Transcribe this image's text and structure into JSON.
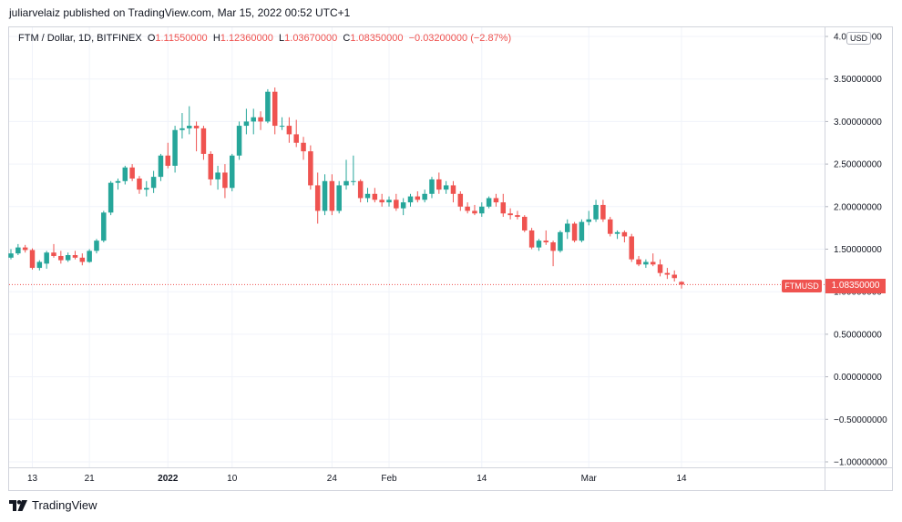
{
  "header": {
    "published": "juliarvelaiz published on TradingView.com, Mar 15, 2022 00:52 UTC+1"
  },
  "legend": {
    "symbol": "FTM / Dollar, 1D, BITFINEX",
    "o_label": "O",
    "o_value": "1.11550000",
    "h_label": "H",
    "h_value": "1.12360000",
    "l_label": "L",
    "l_value": "1.03670000",
    "c_label": "C",
    "c_value": "1.08350000",
    "change": "−0.03200000 (−2.87%)"
  },
  "currency_tag": "USD",
  "last_price": {
    "symbol": "FTMUSD",
    "value": "1.08350000"
  },
  "brand": {
    "name": "TradingView"
  },
  "colors": {
    "up": "#26a69a",
    "down": "#ef5350",
    "grid": "#f0f3fa",
    "axis_text": "#131722"
  },
  "chart_data": {
    "type": "candlestick",
    "ylim": [
      -1.0,
      4.0
    ],
    "y_ticks": [
      -1.0,
      -0.5,
      0.0,
      0.5,
      1.0,
      1.5,
      2.0,
      2.5,
      3.0,
      3.5,
      4.0
    ],
    "y_tick_labels": [
      "−1.00000000",
      "−0.50000000",
      "0.00000000",
      "0.50000000",
      "1.00000000",
      "1.50000000",
      "2.00000000",
      "2.50000000",
      "3.00000000",
      "3.50000000",
      "4.00000000"
    ],
    "x_ticks": [
      {
        "label": "13",
        "date": "2021-12-13",
        "bold": false
      },
      {
        "label": "21",
        "date": "2021-12-21",
        "bold": false
      },
      {
        "label": "2022",
        "date": "2022-01-01",
        "bold": true
      },
      {
        "label": "10",
        "date": "2022-01-10",
        "bold": false
      },
      {
        "label": "24",
        "date": "2022-01-24",
        "bold": false
      },
      {
        "label": "Feb",
        "date": "2022-02-01",
        "bold": false
      },
      {
        "label": "14",
        "date": "2022-02-14",
        "bold": false
      },
      {
        "label": "Mar",
        "date": "2022-03-01",
        "bold": false
      },
      {
        "label": "14",
        "date": "2022-03-14",
        "bold": false
      }
    ],
    "last_close": 1.0835,
    "candles": [
      {
        "date": "2021-12-10",
        "o": 1.4,
        "h": 1.5,
        "l": 1.38,
        "c": 1.45
      },
      {
        "date": "2021-12-11",
        "o": 1.45,
        "h": 1.56,
        "l": 1.43,
        "c": 1.52
      },
      {
        "date": "2021-12-12",
        "o": 1.52,
        "h": 1.55,
        "l": 1.46,
        "c": 1.49
      },
      {
        "date": "2021-12-13",
        "o": 1.49,
        "h": 1.51,
        "l": 1.26,
        "c": 1.28
      },
      {
        "date": "2021-12-14",
        "o": 1.28,
        "h": 1.37,
        "l": 1.25,
        "c": 1.35
      },
      {
        "date": "2021-12-15",
        "o": 1.33,
        "h": 1.48,
        "l": 1.27,
        "c": 1.46
      },
      {
        "date": "2021-12-16",
        "o": 1.46,
        "h": 1.56,
        "l": 1.4,
        "c": 1.42
      },
      {
        "date": "2021-12-17",
        "o": 1.42,
        "h": 1.48,
        "l": 1.33,
        "c": 1.37
      },
      {
        "date": "2021-12-18",
        "o": 1.37,
        "h": 1.46,
        "l": 1.35,
        "c": 1.43
      },
      {
        "date": "2021-12-19",
        "o": 1.43,
        "h": 1.48,
        "l": 1.38,
        "c": 1.4
      },
      {
        "date": "2021-12-20",
        "o": 1.4,
        "h": 1.45,
        "l": 1.31,
        "c": 1.35
      },
      {
        "date": "2021-12-21",
        "o": 1.35,
        "h": 1.5,
        "l": 1.34,
        "c": 1.48
      },
      {
        "date": "2021-12-22",
        "o": 1.48,
        "h": 1.62,
        "l": 1.45,
        "c": 1.6
      },
      {
        "date": "2021-12-23",
        "o": 1.6,
        "h": 1.95,
        "l": 1.58,
        "c": 1.93
      },
      {
        "date": "2021-12-24",
        "o": 1.93,
        "h": 2.3,
        "l": 1.9,
        "c": 2.28
      },
      {
        "date": "2021-12-25",
        "o": 2.28,
        "h": 2.33,
        "l": 2.2,
        "c": 2.3
      },
      {
        "date": "2021-12-26",
        "o": 2.3,
        "h": 2.48,
        "l": 2.26,
        "c": 2.46
      },
      {
        "date": "2021-12-27",
        "o": 2.46,
        "h": 2.5,
        "l": 2.3,
        "c": 2.33
      },
      {
        "date": "2021-12-28",
        "o": 2.33,
        "h": 2.36,
        "l": 2.15,
        "c": 2.2
      },
      {
        "date": "2021-12-29",
        "o": 2.2,
        "h": 2.3,
        "l": 2.12,
        "c": 2.22
      },
      {
        "date": "2021-12-30",
        "o": 2.22,
        "h": 2.42,
        "l": 2.16,
        "c": 2.35
      },
      {
        "date": "2021-12-31",
        "o": 2.35,
        "h": 2.62,
        "l": 2.3,
        "c": 2.6
      },
      {
        "date": "2022-01-01",
        "o": 2.6,
        "h": 2.75,
        "l": 2.45,
        "c": 2.48
      },
      {
        "date": "2022-01-02",
        "o": 2.48,
        "h": 2.95,
        "l": 2.4,
        "c": 2.9
      },
      {
        "date": "2022-01-03",
        "o": 2.9,
        "h": 3.1,
        "l": 2.8,
        "c": 2.92
      },
      {
        "date": "2022-01-04",
        "o": 2.92,
        "h": 3.18,
        "l": 2.85,
        "c": 2.95
      },
      {
        "date": "2022-01-05",
        "o": 2.95,
        "h": 3.0,
        "l": 2.65,
        "c": 2.92
      },
      {
        "date": "2022-01-06",
        "o": 2.92,
        "h": 2.95,
        "l": 2.55,
        "c": 2.62
      },
      {
        "date": "2022-01-07",
        "o": 2.62,
        "h": 2.65,
        "l": 2.25,
        "c": 2.32
      },
      {
        "date": "2022-01-08",
        "o": 2.32,
        "h": 2.48,
        "l": 2.2,
        "c": 2.4
      },
      {
        "date": "2022-01-09",
        "o": 2.4,
        "h": 2.5,
        "l": 2.1,
        "c": 2.22
      },
      {
        "date": "2022-01-10",
        "o": 2.22,
        "h": 2.62,
        "l": 2.18,
        "c": 2.6
      },
      {
        "date": "2022-01-11",
        "o": 2.6,
        "h": 3.0,
        "l": 2.55,
        "c": 2.95
      },
      {
        "date": "2022-01-12",
        "o": 2.95,
        "h": 3.15,
        "l": 2.85,
        "c": 3.0
      },
      {
        "date": "2022-01-13",
        "o": 3.0,
        "h": 3.15,
        "l": 2.85,
        "c": 3.05
      },
      {
        "date": "2022-01-14",
        "o": 3.05,
        "h": 3.12,
        "l": 2.9,
        "c": 3.0
      },
      {
        "date": "2022-01-15",
        "o": 3.0,
        "h": 3.38,
        "l": 2.98,
        "c": 3.35
      },
      {
        "date": "2022-01-16",
        "o": 3.35,
        "h": 3.4,
        "l": 2.85,
        "c": 2.95
      },
      {
        "date": "2022-01-17",
        "o": 2.95,
        "h": 3.05,
        "l": 2.9,
        "c": 2.95
      },
      {
        "date": "2022-01-18",
        "o": 2.95,
        "h": 3.05,
        "l": 2.75,
        "c": 2.85
      },
      {
        "date": "2022-01-19",
        "o": 2.85,
        "h": 3.02,
        "l": 2.7,
        "c": 2.75
      },
      {
        "date": "2022-01-20",
        "o": 2.75,
        "h": 2.82,
        "l": 2.55,
        "c": 2.65
      },
      {
        "date": "2022-01-21",
        "o": 2.65,
        "h": 2.72,
        "l": 2.2,
        "c": 2.25
      },
      {
        "date": "2022-01-22",
        "o": 2.25,
        "h": 2.4,
        "l": 1.8,
        "c": 1.95
      },
      {
        "date": "2022-01-23",
        "o": 1.95,
        "h": 2.38,
        "l": 1.9,
        "c": 2.3
      },
      {
        "date": "2022-01-24",
        "o": 2.3,
        "h": 2.38,
        "l": 1.9,
        "c": 1.95
      },
      {
        "date": "2022-01-25",
        "o": 1.95,
        "h": 2.3,
        "l": 1.92,
        "c": 2.25
      },
      {
        "date": "2022-01-26",
        "o": 2.25,
        "h": 2.55,
        "l": 2.2,
        "c": 2.3
      },
      {
        "date": "2022-01-27",
        "o": 2.3,
        "h": 2.6,
        "l": 2.25,
        "c": 2.3
      },
      {
        "date": "2022-01-28",
        "o": 2.3,
        "h": 2.32,
        "l": 2.05,
        "c": 2.1
      },
      {
        "date": "2022-01-29",
        "o": 2.1,
        "h": 2.22,
        "l": 2.05,
        "c": 2.15
      },
      {
        "date": "2022-01-30",
        "o": 2.15,
        "h": 2.22,
        "l": 2.05,
        "c": 2.08
      },
      {
        "date": "2022-01-31",
        "o": 2.08,
        "h": 2.15,
        "l": 2.0,
        "c": 2.05
      },
      {
        "date": "2022-02-01",
        "o": 2.05,
        "h": 2.12,
        "l": 2.0,
        "c": 2.08
      },
      {
        "date": "2022-02-02",
        "o": 2.08,
        "h": 2.15,
        "l": 1.95,
        "c": 1.98
      },
      {
        "date": "2022-02-03",
        "o": 1.98,
        "h": 2.1,
        "l": 1.9,
        "c": 2.05
      },
      {
        "date": "2022-02-04",
        "o": 2.05,
        "h": 2.15,
        "l": 2.0,
        "c": 2.12
      },
      {
        "date": "2022-02-05",
        "o": 2.12,
        "h": 2.18,
        "l": 2.05,
        "c": 2.08
      },
      {
        "date": "2022-02-06",
        "o": 2.08,
        "h": 2.2,
        "l": 2.05,
        "c": 2.15
      },
      {
        "date": "2022-02-07",
        "o": 2.15,
        "h": 2.35,
        "l": 2.1,
        "c": 2.32
      },
      {
        "date": "2022-02-08",
        "o": 2.32,
        "h": 2.4,
        "l": 2.15,
        "c": 2.2
      },
      {
        "date": "2022-02-09",
        "o": 2.2,
        "h": 2.3,
        "l": 2.15,
        "c": 2.25
      },
      {
        "date": "2022-02-10",
        "o": 2.25,
        "h": 2.3,
        "l": 2.05,
        "c": 2.15
      },
      {
        "date": "2022-02-11",
        "o": 2.15,
        "h": 2.18,
        "l": 1.95,
        "c": 2.0
      },
      {
        "date": "2022-02-12",
        "o": 2.0,
        "h": 2.05,
        "l": 1.92,
        "c": 1.95
      },
      {
        "date": "2022-02-13",
        "o": 1.95,
        "h": 2.02,
        "l": 1.9,
        "c": 1.92
      },
      {
        "date": "2022-02-14",
        "o": 1.92,
        "h": 2.05,
        "l": 1.88,
        "c": 2.0
      },
      {
        "date": "2022-02-15",
        "o": 2.0,
        "h": 2.12,
        "l": 1.98,
        "c": 2.1
      },
      {
        "date": "2022-02-16",
        "o": 2.1,
        "h": 2.15,
        "l": 2.0,
        "c": 2.05
      },
      {
        "date": "2022-02-17",
        "o": 2.05,
        "h": 2.15,
        "l": 1.88,
        "c": 1.92
      },
      {
        "date": "2022-02-18",
        "o": 1.92,
        "h": 1.98,
        "l": 1.85,
        "c": 1.9
      },
      {
        "date": "2022-02-19",
        "o": 1.9,
        "h": 1.95,
        "l": 1.85,
        "c": 1.88
      },
      {
        "date": "2022-02-20",
        "o": 1.88,
        "h": 1.9,
        "l": 1.7,
        "c": 1.72
      },
      {
        "date": "2022-02-21",
        "o": 1.72,
        "h": 1.75,
        "l": 1.5,
        "c": 1.52
      },
      {
        "date": "2022-02-22",
        "o": 1.52,
        "h": 1.62,
        "l": 1.48,
        "c": 1.6
      },
      {
        "date": "2022-02-23",
        "o": 1.6,
        "h": 1.72,
        "l": 1.55,
        "c": 1.58
      },
      {
        "date": "2022-02-24",
        "o": 1.58,
        "h": 1.6,
        "l": 1.3,
        "c": 1.48
      },
      {
        "date": "2022-02-25",
        "o": 1.48,
        "h": 1.72,
        "l": 1.46,
        "c": 1.7
      },
      {
        "date": "2022-02-26",
        "o": 1.7,
        "h": 1.85,
        "l": 1.62,
        "c": 1.8
      },
      {
        "date": "2022-02-27",
        "o": 1.8,
        "h": 1.82,
        "l": 1.58,
        "c": 1.6
      },
      {
        "date": "2022-02-28",
        "o": 1.6,
        "h": 1.85,
        "l": 1.58,
        "c": 1.82
      },
      {
        "date": "2022-03-01",
        "o": 1.82,
        "h": 1.95,
        "l": 1.78,
        "c": 1.85
      },
      {
        "date": "2022-03-02",
        "o": 1.85,
        "h": 2.08,
        "l": 1.82,
        "c": 2.02
      },
      {
        "date": "2022-03-03",
        "o": 2.02,
        "h": 2.08,
        "l": 1.82,
        "c": 1.85
      },
      {
        "date": "2022-03-04",
        "o": 1.85,
        "h": 1.88,
        "l": 1.65,
        "c": 1.68
      },
      {
        "date": "2022-03-05",
        "o": 1.68,
        "h": 1.72,
        "l": 1.62,
        "c": 1.7
      },
      {
        "date": "2022-03-06",
        "o": 1.7,
        "h": 1.72,
        "l": 1.58,
        "c": 1.65
      },
      {
        "date": "2022-03-07",
        "o": 1.65,
        "h": 1.68,
        "l": 1.35,
        "c": 1.38
      },
      {
        "date": "2022-03-08",
        "o": 1.38,
        "h": 1.42,
        "l": 1.3,
        "c": 1.32
      },
      {
        "date": "2022-03-09",
        "o": 1.32,
        "h": 1.38,
        "l": 1.28,
        "c": 1.35
      },
      {
        "date": "2022-03-10",
        "o": 1.35,
        "h": 1.45,
        "l": 1.3,
        "c": 1.32
      },
      {
        "date": "2022-03-11",
        "o": 1.32,
        "h": 1.38,
        "l": 1.18,
        "c": 1.22
      },
      {
        "date": "2022-03-12",
        "o": 1.22,
        "h": 1.28,
        "l": 1.15,
        "c": 1.2
      },
      {
        "date": "2022-03-13",
        "o": 1.2,
        "h": 1.25,
        "l": 1.12,
        "c": 1.16
      },
      {
        "date": "2022-03-14",
        "o": 1.1155,
        "h": 1.1236,
        "l": 1.0367,
        "c": 1.0835
      }
    ]
  }
}
